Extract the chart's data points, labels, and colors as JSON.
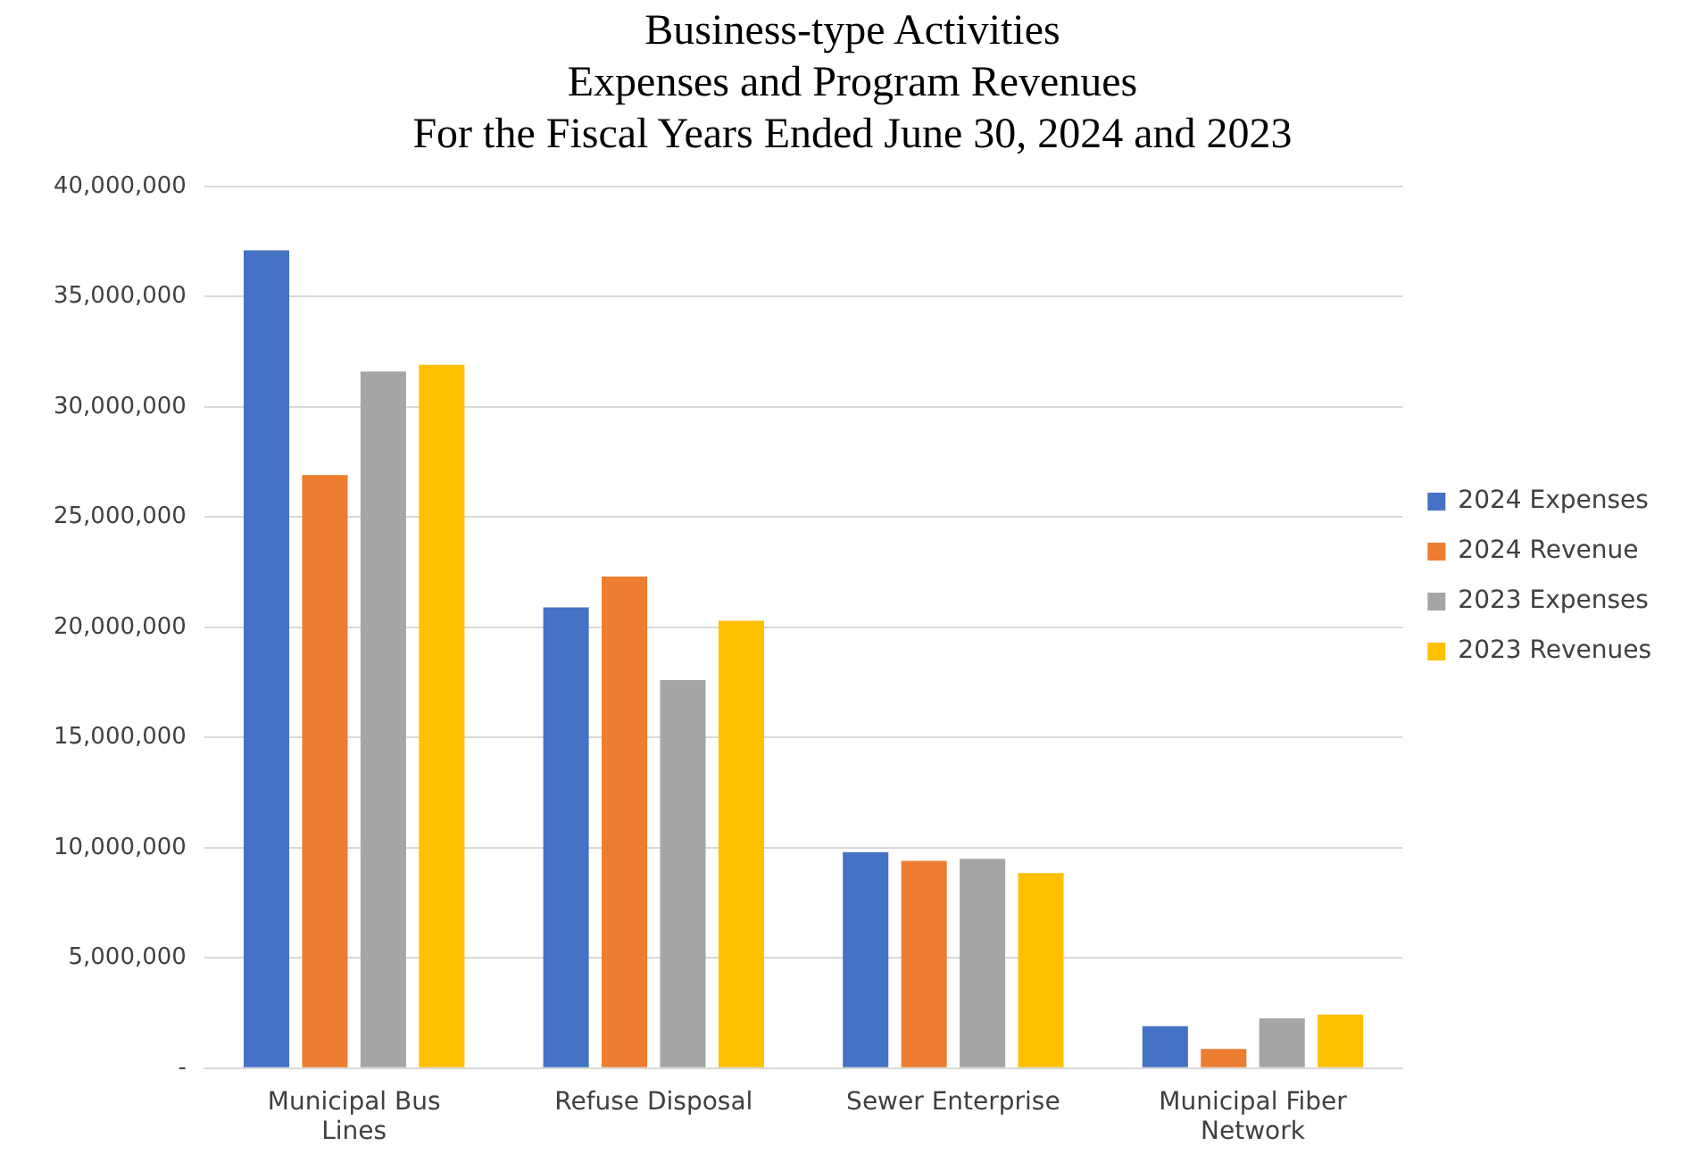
{
  "chart_data": {
    "type": "bar",
    "title": "Business-type Activities\nExpenses and Program Revenues\nFor the Fiscal Years Ended June 30, 2024 and 2023",
    "categories": [
      "Municipal Bus Lines",
      "Refuse Disposal",
      "Sewer Enterprise",
      "Municipal Fiber Network"
    ],
    "series": [
      {
        "name": "2024 Expenses",
        "color": "#4472c4",
        "values": [
          37100000,
          20900000,
          9800000,
          1900000
        ]
      },
      {
        "name": "2024 Revenue",
        "color": "#ed7d31",
        "values": [
          26900000,
          22300000,
          9400000,
          870000
        ]
      },
      {
        "name": "2023 Expenses",
        "color": "#a5a5a5",
        "values": [
          31600000,
          17600000,
          9500000,
          2260000
        ]
      },
      {
        "name": "2023 Revenues",
        "color": "#ffc000",
        "values": [
          31900000,
          20300000,
          8850000,
          2430000
        ]
      }
    ],
    "ylim": [
      0,
      40000000
    ],
    "yticks": [
      {
        "value": 0,
        "label": "-"
      },
      {
        "value": 5000000,
        "label": "5,000,000"
      },
      {
        "value": 10000000,
        "label": "10,000,000"
      },
      {
        "value": 15000000,
        "label": "15,000,000"
      },
      {
        "value": 20000000,
        "label": "20,000,000"
      },
      {
        "value": 25000000,
        "label": "25,000,000"
      },
      {
        "value": 30000000,
        "label": "30,000,000"
      },
      {
        "value": 35000000,
        "label": "35,000,000"
      },
      {
        "value": 40000000,
        "label": "40,000,000"
      }
    ],
    "grid": "y",
    "legend": "right"
  }
}
